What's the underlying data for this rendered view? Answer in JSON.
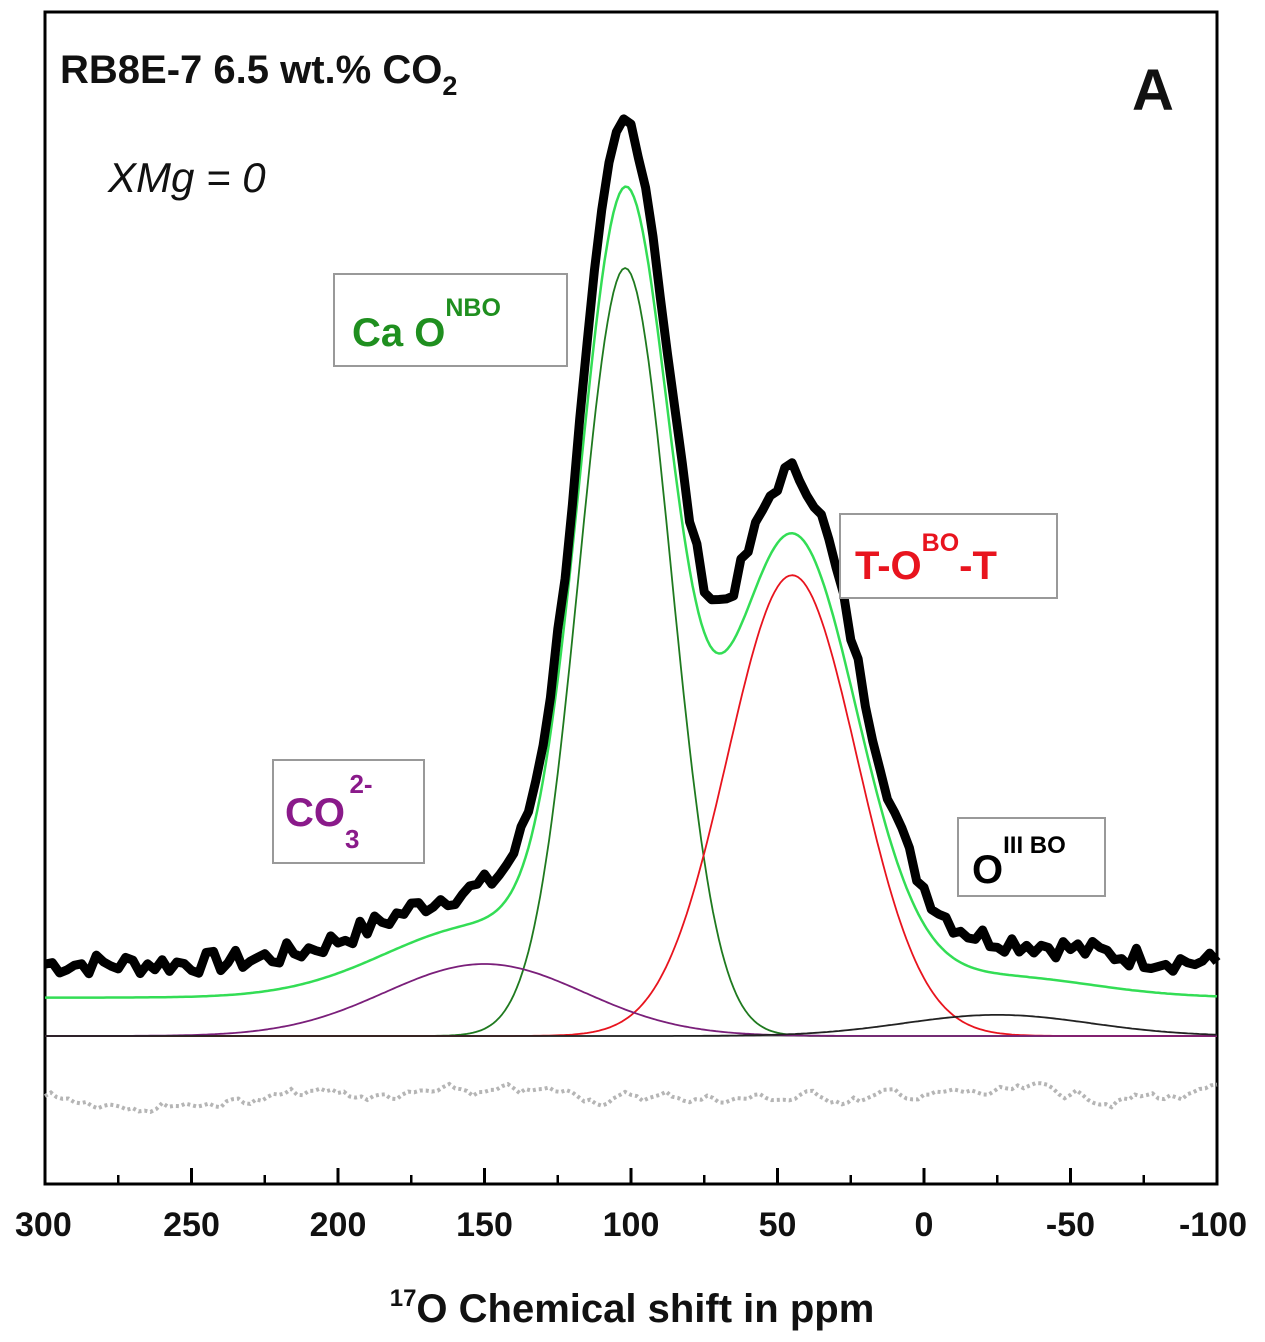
{
  "chart_data": {
    "type": "line",
    "title_main": "RB8E-7 6.5 wt.% CO",
    "title_sub": "2",
    "panel_letter": "A",
    "annotation": {
      "prefix": "XMg",
      "suffix": " = 0"
    },
    "xlabel": {
      "sup": "17",
      "text": "O Chemical shift in ppm"
    },
    "xlim": [
      300,
      -100
    ],
    "x_ticks": [
      "300",
      "250",
      "200",
      "150",
      "100",
      "50",
      "0",
      "-50",
      "-100"
    ],
    "x_tick_values": [
      300,
      250,
      200,
      150,
      100,
      50,
      0,
      -50,
      -100
    ],
    "grid": false,
    "colors": {
      "data": "#000000",
      "total_fit": "#33dd55",
      "ca_onbo": "#1f7a1f",
      "tobo": "#e8141e",
      "co3": "#7a1f7a",
      "oiiibo": "#222222",
      "residual": "#b5b5b5",
      "ca_label": "#1f8f1f",
      "tobo_label": "#e8141e",
      "co3_label": "#8a1a8a",
      "oiii_label": "#000000"
    },
    "components": [
      {
        "name": "Ca ONBO",
        "center": 102,
        "fwhm": 37,
        "height": 0.8
      },
      {
        "name": "T-OBO-T",
        "center": 45,
        "fwhm": 52,
        "height": 0.48
      },
      {
        "name": "CO3 2-",
        "center": 150,
        "fwhm": 80,
        "height": 0.075
      },
      {
        "name": "OIII BO",
        "center": -25,
        "fwhm": 75,
        "height": 0.022
      }
    ],
    "baseline_offset": 0.04,
    "data_noise_amplitude": 0.012,
    "labels": {
      "ca": {
        "base": "Ca O",
        "sup": "NBO"
      },
      "tobo": {
        "base": "T-O",
        "sup": "BO",
        "tail": "-T"
      },
      "co3": {
        "base": "CO",
        "sub": "3",
        "sup": "2-"
      },
      "oiii": {
        "base": "O",
        "sup": "III BO"
      }
    }
  }
}
